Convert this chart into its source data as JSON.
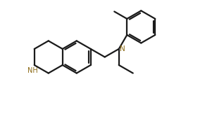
{
  "background_color": "#ffffff",
  "bond_color": "#1a1a1a",
  "N_color": "#8B6914",
  "NH_color": "#8B6914",
  "line_width": 1.6,
  "figsize": [
    3.18,
    1.63
  ],
  "dpi": 100,
  "xlim": [
    0,
    10.5
  ],
  "ylim": [
    0,
    6.0
  ]
}
